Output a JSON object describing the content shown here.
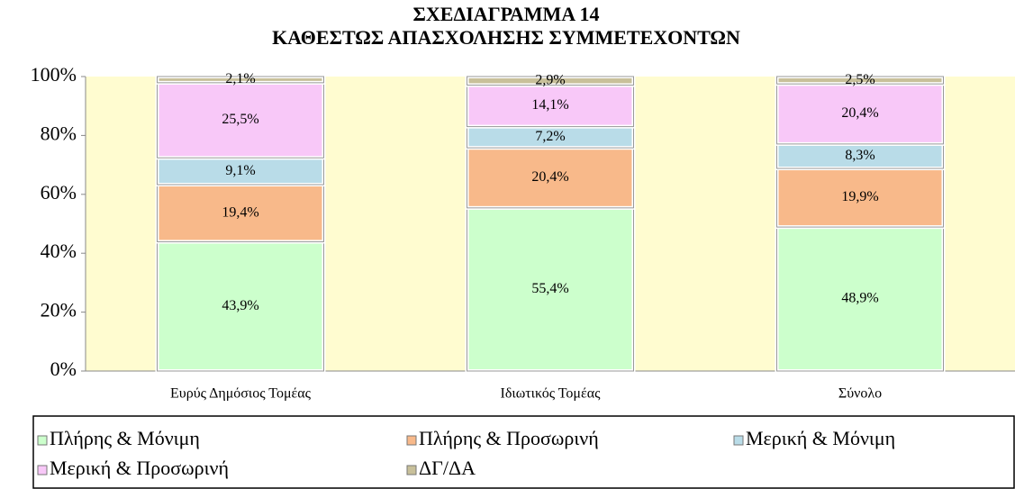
{
  "chart_data": {
    "type": "stacked_bar",
    "title": "ΣΧΕΔΙΑΓΡΑΜΜΑ 14",
    "subtitle": "ΚΑΘΕΣΤΩΣ ΑΠΑΣΧΟΛΗΣΗΣ ΣΥΜΜΕΤΕΧΟΝΤΩΝ",
    "categories": [
      "Ευρύς Δημόσιος Τομέας",
      "Ιδιωτικός Τομέας",
      "Σύνολο"
    ],
    "series": [
      {
        "name": "Πλήρης & Μόνιμη",
        "color": "#ccffcc",
        "values": [
          43.9,
          55.4,
          48.9
        ],
        "value_labels": [
          "43,9%",
          "55,4%",
          "48,9%"
        ]
      },
      {
        "name": "Πλήρης & Προσωρινή",
        "color": "#f8b98a",
        "values": [
          19.4,
          20.4,
          19.9
        ],
        "value_labels": [
          "19,4%",
          "20,4%",
          "19,9%"
        ]
      },
      {
        "name": "Μερική & Μόνιμη",
        "color": "#b9dce8",
        "values": [
          9.1,
          7.2,
          8.3
        ],
        "value_labels": [
          "9,1%",
          "7,2%",
          "8,3%"
        ]
      },
      {
        "name": "Μερική & Προσωρινή",
        "color": "#f8c8f8",
        "values": [
          25.5,
          14.1,
          20.4
        ],
        "value_labels": [
          "25,5%",
          "14,1%",
          "20,4%"
        ]
      },
      {
        "name": "ΔΓ/ΔΑ",
        "color": "#c8c09a",
        "values": [
          2.1,
          2.9,
          2.5
        ],
        "value_labels": [
          "2,1%",
          "2,9%",
          "2,5%"
        ]
      }
    ],
    "ylim": [
      0,
      100
    ],
    "yticks": [
      {
        "value": 0,
        "label": "0%"
      },
      {
        "value": 20,
        "label": "20%"
      },
      {
        "value": 40,
        "label": "40%"
      },
      {
        "value": 60,
        "label": "60%"
      },
      {
        "value": 80,
        "label": "80%"
      },
      {
        "value": 100,
        "label": "100%"
      }
    ],
    "legend": "bottom"
  }
}
